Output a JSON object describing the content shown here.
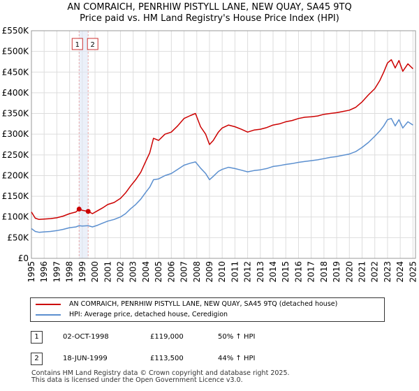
{
  "title_line1": "AN COMRAICH, PENRHIW PISTYLL LANE, NEW QUAY, SA45 9TQ",
  "title_line2": "Price paid vs. HM Land Registry's House Price Index (HPI)",
  "colors": {
    "property": "#cc0000",
    "hpi": "#5b8fcf",
    "grid": "#dddddd",
    "sale_marker_line": "#e8aaaa",
    "sale_band": "#dde6f5"
  },
  "chart_data": {
    "type": "line",
    "title": "AN COMRAICH, PENRHIW PISTYLL LANE, NEW QUAY, SA45 9TQ — Price paid vs. HM Land Registry's House Price Index (HPI)",
    "xlabel": "",
    "ylabel": "",
    "xlim": [
      1995,
      2025.2
    ],
    "ylim": [
      0,
      550000
    ],
    "grid": true,
    "y_ticks": [
      {
        "value": 0,
        "label": "£0"
      },
      {
        "value": 50000,
        "label": "£50K"
      },
      {
        "value": 100000,
        "label": "£100K"
      },
      {
        "value": 150000,
        "label": "£150K"
      },
      {
        "value": 200000,
        "label": "£200K"
      },
      {
        "value": 250000,
        "label": "£250K"
      },
      {
        "value": 300000,
        "label": "£300K"
      },
      {
        "value": 350000,
        "label": "£350K"
      },
      {
        "value": 400000,
        "label": "£400K"
      },
      {
        "value": 450000,
        "label": "£450K"
      },
      {
        "value": 500000,
        "label": "£500K"
      },
      {
        "value": 550000,
        "label": "£550K"
      }
    ],
    "x_ticks": [
      "1995",
      "1996",
      "1997",
      "1998",
      "1999",
      "2000",
      "2001",
      "2002",
      "2003",
      "2004",
      "2005",
      "2006",
      "2007",
      "2008",
      "2009",
      "2010",
      "2011",
      "2012",
      "2013",
      "2014",
      "2015",
      "2016",
      "2017",
      "2018",
      "2019",
      "2020",
      "2021",
      "2022",
      "2023",
      "2024",
      "2025"
    ],
    "series": [
      {
        "name": "AN COMRAICH, PENRHIW PISTYLL LANE, NEW QUAY, SA45 9TQ (detached house)",
        "points": [
          [
            1995.0,
            112000
          ],
          [
            1995.3,
            97000
          ],
          [
            1995.6,
            94000
          ],
          [
            1996.0,
            95000
          ],
          [
            1996.5,
            96000
          ],
          [
            1997.0,
            98000
          ],
          [
            1997.5,
            102000
          ],
          [
            1998.0,
            108000
          ],
          [
            1998.5,
            112000
          ],
          [
            1998.75,
            119000
          ],
          [
            1999.0,
            116000
          ],
          [
            1999.46,
            113500
          ],
          [
            1999.8,
            108000
          ],
          [
            2000.2,
            115000
          ],
          [
            2000.6,
            122000
          ],
          [
            2001.0,
            130000
          ],
          [
            2001.5,
            135000
          ],
          [
            2002.0,
            145000
          ],
          [
            2002.4,
            158000
          ],
          [
            2002.8,
            175000
          ],
          [
            2003.2,
            190000
          ],
          [
            2003.6,
            208000
          ],
          [
            2004.0,
            235000
          ],
          [
            2004.3,
            255000
          ],
          [
            2004.6,
            290000
          ],
          [
            2005.0,
            285000
          ],
          [
            2005.5,
            300000
          ],
          [
            2006.0,
            305000
          ],
          [
            2006.5,
            320000
          ],
          [
            2007.0,
            338000
          ],
          [
            2007.5,
            345000
          ],
          [
            2007.9,
            350000
          ],
          [
            2008.3,
            318000
          ],
          [
            2008.7,
            300000
          ],
          [
            2009.0,
            275000
          ],
          [
            2009.3,
            285000
          ],
          [
            2009.7,
            305000
          ],
          [
            2010.0,
            315000
          ],
          [
            2010.5,
            322000
          ],
          [
            2011.0,
            318000
          ],
          [
            2011.5,
            312000
          ],
          [
            2012.0,
            305000
          ],
          [
            2012.5,
            310000
          ],
          [
            2013.0,
            312000
          ],
          [
            2013.5,
            316000
          ],
          [
            2014.0,
            322000
          ],
          [
            2014.5,
            325000
          ],
          [
            2015.0,
            330000
          ],
          [
            2015.5,
            333000
          ],
          [
            2016.0,
            338000
          ],
          [
            2016.5,
            341000
          ],
          [
            2017.0,
            342000
          ],
          [
            2017.5,
            344000
          ],
          [
            2018.0,
            348000
          ],
          [
            2018.5,
            350000
          ],
          [
            2019.0,
            352000
          ],
          [
            2019.5,
            355000
          ],
          [
            2020.0,
            358000
          ],
          [
            2020.5,
            365000
          ],
          [
            2021.0,
            378000
          ],
          [
            2021.5,
            395000
          ],
          [
            2022.0,
            410000
          ],
          [
            2022.4,
            430000
          ],
          [
            2022.7,
            450000
          ],
          [
            2023.0,
            472000
          ],
          [
            2023.3,
            480000
          ],
          [
            2023.6,
            460000
          ],
          [
            2023.9,
            478000
          ],
          [
            2024.2,
            452000
          ],
          [
            2024.6,
            470000
          ],
          [
            2025.0,
            458000
          ]
        ]
      },
      {
        "name": "HPI: Average price, detached house, Ceredigion",
        "points": [
          [
            1995.0,
            72000
          ],
          [
            1995.3,
            65000
          ],
          [
            1995.6,
            63000
          ],
          [
            1996.0,
            64000
          ],
          [
            1996.5,
            65000
          ],
          [
            1997.0,
            67000
          ],
          [
            1997.5,
            70000
          ],
          [
            1998.0,
            74000
          ],
          [
            1998.5,
            76000
          ],
          [
            1998.75,
            79000
          ],
          [
            1999.0,
            78000
          ],
          [
            1999.46,
            79000
          ],
          [
            1999.8,
            76000
          ],
          [
            2000.2,
            80000
          ],
          [
            2000.6,
            85000
          ],
          [
            2001.0,
            90000
          ],
          [
            2001.5,
            94000
          ],
          [
            2002.0,
            100000
          ],
          [
            2002.4,
            108000
          ],
          [
            2002.8,
            120000
          ],
          [
            2003.2,
            130000
          ],
          [
            2003.6,
            143000
          ],
          [
            2004.0,
            160000
          ],
          [
            2004.3,
            172000
          ],
          [
            2004.6,
            190000
          ],
          [
            2005.0,
            192000
          ],
          [
            2005.5,
            200000
          ],
          [
            2006.0,
            205000
          ],
          [
            2006.5,
            215000
          ],
          [
            2007.0,
            225000
          ],
          [
            2007.5,
            230000
          ],
          [
            2007.9,
            233000
          ],
          [
            2008.3,
            218000
          ],
          [
            2008.7,
            205000
          ],
          [
            2009.0,
            190000
          ],
          [
            2009.3,
            198000
          ],
          [
            2009.7,
            210000
          ],
          [
            2010.0,
            215000
          ],
          [
            2010.5,
            220000
          ],
          [
            2011.0,
            217000
          ],
          [
            2011.5,
            213000
          ],
          [
            2012.0,
            209000
          ],
          [
            2012.5,
            212000
          ],
          [
            2013.0,
            214000
          ],
          [
            2013.5,
            217000
          ],
          [
            2014.0,
            222000
          ],
          [
            2014.5,
            224000
          ],
          [
            2015.0,
            227000
          ],
          [
            2015.5,
            229000
          ],
          [
            2016.0,
            232000
          ],
          [
            2016.5,
            234000
          ],
          [
            2017.0,
            236000
          ],
          [
            2017.5,
            238000
          ],
          [
            2018.0,
            241000
          ],
          [
            2018.5,
            244000
          ],
          [
            2019.0,
            246000
          ],
          [
            2019.5,
            249000
          ],
          [
            2020.0,
            252000
          ],
          [
            2020.5,
            258000
          ],
          [
            2021.0,
            268000
          ],
          [
            2021.5,
            280000
          ],
          [
            2022.0,
            295000
          ],
          [
            2022.4,
            308000
          ],
          [
            2022.7,
            320000
          ],
          [
            2023.0,
            335000
          ],
          [
            2023.3,
            338000
          ],
          [
            2023.6,
            320000
          ],
          [
            2023.9,
            335000
          ],
          [
            2024.2,
            315000
          ],
          [
            2024.6,
            330000
          ],
          [
            2025.0,
            322000
          ]
        ]
      }
    ],
    "sales": [
      {
        "label": "1",
        "x": 1998.75,
        "price": 119000
      },
      {
        "label": "2",
        "x": 1999.46,
        "price": 113500
      }
    ]
  },
  "legend": {
    "property": "AN COMRAICH, PENRHIW PISTYLL LANE, NEW QUAY, SA45 9TQ (detached house)",
    "hpi": "HPI: Average price, detached house, Ceredigion"
  },
  "sales_table": [
    {
      "num": "1",
      "date": "02-OCT-1998",
      "price": "£119,000",
      "hpi": "50% ↑ HPI"
    },
    {
      "num": "2",
      "date": "18-JUN-1999",
      "price": "£113,500",
      "hpi": "44% ↑ HPI"
    }
  ],
  "footer": {
    "line1": "Contains HM Land Registry data © Crown copyright and database right 2025.",
    "line2": "This data is licensed under the Open Government Licence v3.0."
  }
}
